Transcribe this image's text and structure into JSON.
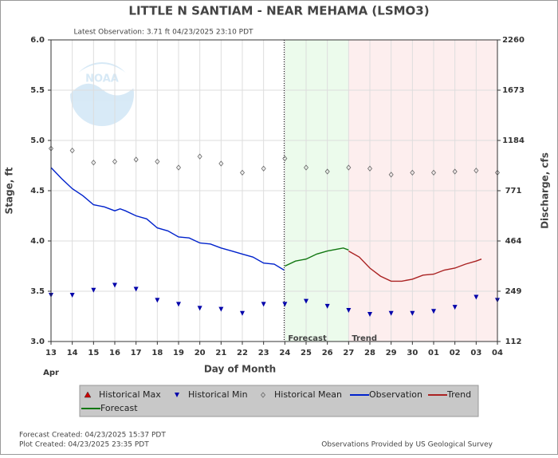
{
  "chart_data": {
    "type": "hydrograph",
    "title": "LITTLE N SANTIAM - NEAR MEHAMA  (LSMO3)",
    "subtitle": "Latest Observation: 3.71 ft 04/23/2025 23:10 PDT",
    "logo_text": "NOAA",
    "ylabel": "Stage, ft",
    "y2label": "Discharge, cfs",
    "xlabel": "Day of Month",
    "month_label": "Apr",
    "ylim": [
      3.0,
      6.0
    ],
    "yticks": [
      {
        "value": 3.0,
        "label": "3.0"
      },
      {
        "value": 3.5,
        "label": "3.5"
      },
      {
        "value": 4.0,
        "label": "4.0"
      },
      {
        "value": 4.5,
        "label": "4.5"
      },
      {
        "value": 5.0,
        "label": "5.0"
      },
      {
        "value": 5.5,
        "label": "5.5"
      },
      {
        "value": 6.0,
        "label": "6.0"
      }
    ],
    "y2ticks": [
      112,
      249,
      464,
      771,
      1184,
      1673,
      2260
    ],
    "xlim": [
      "2025-04-13T00:00",
      "2025-05-04T00:00"
    ],
    "xticks": [
      {
        "value": "2025-04-13T00:00",
        "label": "13"
      },
      {
        "value": "2025-04-14T00:00",
        "label": "14"
      },
      {
        "value": "2025-04-15T00:00",
        "label": "15"
      },
      {
        "value": "2025-04-16T00:00",
        "label": "16"
      },
      {
        "value": "2025-04-17T00:00",
        "label": "17"
      },
      {
        "value": "2025-04-18T00:00",
        "label": "18"
      },
      {
        "value": "2025-04-19T00:00",
        "label": "19"
      },
      {
        "value": "2025-04-20T00:00",
        "label": "20"
      },
      {
        "value": "2025-04-21T00:00",
        "label": "21"
      },
      {
        "value": "2025-04-22T00:00",
        "label": "22"
      },
      {
        "value": "2025-04-23T00:00",
        "label": "23"
      },
      {
        "value": "2025-04-24T00:00",
        "label": "24"
      },
      {
        "value": "2025-04-25T00:00",
        "label": "25"
      },
      {
        "value": "2025-04-26T00:00",
        "label": "26"
      },
      {
        "value": "2025-04-27T00:00",
        "label": "27"
      },
      {
        "value": "2025-04-28T00:00",
        "label": "28"
      },
      {
        "value": "2025-04-29T00:00",
        "label": "29"
      },
      {
        "value": "2025-04-30T00:00",
        "label": "30"
      },
      {
        "value": "2025-05-01T00:00",
        "label": "01"
      },
      {
        "value": "2025-05-02T00:00",
        "label": "02"
      },
      {
        "value": "2025-05-03T00:00",
        "label": "03"
      },
      {
        "value": "2025-05-04T00:00",
        "label": "04"
      }
    ],
    "grid": true,
    "observation_time": "2025-04-23T23:10",
    "regions": [
      {
        "label": "Forecast",
        "start": "2025-04-24T00:00",
        "end": "2025-04-27T00:00",
        "color": "#ecfbec"
      },
      {
        "label": "Trend",
        "start": "2025-04-27T00:00",
        "end": "2025-05-04T00:00",
        "color": "#fdeeee"
      }
    ],
    "series": [
      {
        "name": "Historical Max",
        "marker": "triangle-up",
        "color": "#cc0000",
        "x": [],
        "values": []
      },
      {
        "name": "Historical Min",
        "marker": "triangle-down",
        "color": "#0000aa",
        "x": [
          "2025-04-13T00:00",
          "2025-04-14T00:00",
          "2025-04-15T00:00",
          "2025-04-16T00:00",
          "2025-04-17T00:00",
          "2025-04-18T00:00",
          "2025-04-19T00:00",
          "2025-04-20T00:00",
          "2025-04-21T00:00",
          "2025-04-22T00:00",
          "2025-04-23T00:00",
          "2025-04-24T00:00",
          "2025-04-25T00:00",
          "2025-04-26T00:00",
          "2025-04-27T00:00",
          "2025-04-28T00:00",
          "2025-04-29T00:00",
          "2025-04-30T00:00",
          "2025-05-01T00:00",
          "2025-05-02T00:00",
          "2025-05-03T00:00",
          "2025-05-04T00:00"
        ],
        "values": [
          3.46,
          3.46,
          3.51,
          3.56,
          3.52,
          3.41,
          3.37,
          3.33,
          3.32,
          3.28,
          3.37,
          3.37,
          3.4,
          3.35,
          3.31,
          3.27,
          3.28,
          3.28,
          3.3,
          3.34,
          3.44,
          3.41
        ]
      },
      {
        "name": "Historical Mean",
        "marker": "diamond",
        "color": "#666666",
        "x": [
          "2025-04-13T00:00",
          "2025-04-14T00:00",
          "2025-04-15T00:00",
          "2025-04-16T00:00",
          "2025-04-17T00:00",
          "2025-04-18T00:00",
          "2025-04-19T00:00",
          "2025-04-20T00:00",
          "2025-04-21T00:00",
          "2025-04-22T00:00",
          "2025-04-23T00:00",
          "2025-04-24T00:00",
          "2025-04-25T00:00",
          "2025-04-26T00:00",
          "2025-04-27T00:00",
          "2025-04-28T00:00",
          "2025-04-29T00:00",
          "2025-04-30T00:00",
          "2025-05-01T00:00",
          "2025-05-02T00:00",
          "2025-05-03T00:00",
          "2025-05-04T00:00"
        ],
        "values": [
          4.92,
          4.9,
          4.78,
          4.79,
          4.81,
          4.79,
          4.73,
          4.84,
          4.77,
          4.68,
          4.72,
          4.82,
          4.73,
          4.69,
          4.73,
          4.72,
          4.66,
          4.68,
          4.68,
          4.69,
          4.7,
          4.68
        ]
      },
      {
        "name": "Observation",
        "marker": "line",
        "color": "#0022cc",
        "x": [
          "2025-04-13T00:00",
          "2025-04-13T12:00",
          "2025-04-14T00:00",
          "2025-04-14T12:00",
          "2025-04-15T00:00",
          "2025-04-15T12:00",
          "2025-04-16T00:00",
          "2025-04-16T06:00",
          "2025-04-16T12:00",
          "2025-04-17T00:00",
          "2025-04-17T12:00",
          "2025-04-18T00:00",
          "2025-04-18T12:00",
          "2025-04-19T00:00",
          "2025-04-19T12:00",
          "2025-04-20T00:00",
          "2025-04-20T12:00",
          "2025-04-21T00:00",
          "2025-04-21T12:00",
          "2025-04-22T00:00",
          "2025-04-22T12:00",
          "2025-04-23T00:00",
          "2025-04-23T12:00",
          "2025-04-23T23:10"
        ],
        "values": [
          4.73,
          4.62,
          4.52,
          4.45,
          4.36,
          4.34,
          4.3,
          4.32,
          4.3,
          4.25,
          4.22,
          4.13,
          4.1,
          4.04,
          4.03,
          3.98,
          3.97,
          3.93,
          3.9,
          3.87,
          3.84,
          3.78,
          3.77,
          3.71
        ]
      },
      {
        "name": "Trend",
        "marker": "line",
        "color": "#aa2222",
        "x": [
          "2025-04-27T00:00",
          "2025-04-27T12:00",
          "2025-04-28T00:00",
          "2025-04-28T12:00",
          "2025-04-29T00:00",
          "2025-04-29T12:00",
          "2025-04-30T00:00",
          "2025-04-30T12:00",
          "2025-05-01T00:00",
          "2025-05-01T12:00",
          "2025-05-02T00:00",
          "2025-05-02T12:00",
          "2025-05-03T00:00",
          "2025-05-03T06:00"
        ],
        "values": [
          3.9,
          3.84,
          3.73,
          3.65,
          3.6,
          3.6,
          3.62,
          3.66,
          3.67,
          3.71,
          3.73,
          3.77,
          3.8,
          3.82
        ]
      },
      {
        "name": "Forecast",
        "marker": "line",
        "color": "#117711",
        "x": [
          "2025-04-24T00:00",
          "2025-04-24T12:00",
          "2025-04-25T00:00",
          "2025-04-25T12:00",
          "2025-04-26T00:00",
          "2025-04-26T12:00",
          "2025-04-26T18:00",
          "2025-04-27T00:00"
        ],
        "values": [
          3.75,
          3.8,
          3.82,
          3.87,
          3.9,
          3.92,
          3.93,
          3.91
        ]
      }
    ],
    "footer_left": [
      "Forecast Created: 04/23/2025 15:37 PDT",
      "Plot Created: 04/23/2025 23:35 PDT"
    ],
    "footer_right": "Observations Provided by US Geological Survey"
  }
}
